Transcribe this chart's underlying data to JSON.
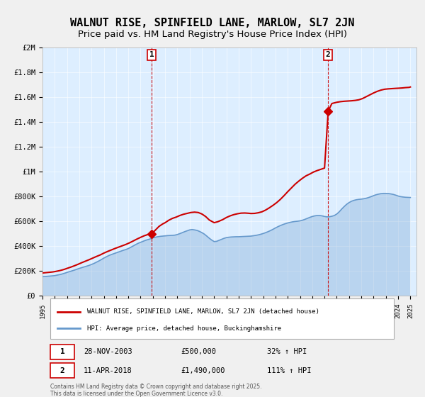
{
  "title": "WALNUT RISE, SPINFIELD LANE, MARLOW, SL7 2JN",
  "subtitle": "Price paid vs. HM Land Registry's House Price Index (HPI)",
  "title_fontsize": 11,
  "subtitle_fontsize": 9.5,
  "sale1_date_str": "28-NOV-2003",
  "sale1_price": 500000,
  "sale1_hpi_pct": "32%",
  "sale2_date_str": "11-APR-2018",
  "sale2_price": 1490000,
  "sale2_hpi_pct": "111%",
  "sale1_x": 2003.9,
  "sale1_y": 500000,
  "sale2_x": 2018.28,
  "sale2_y": 1490000,
  "ylim": [
    0,
    2000000
  ],
  "xlim": [
    1995,
    2025.5
  ],
  "yticks": [
    0,
    200000,
    400000,
    600000,
    800000,
    1000000,
    1200000,
    1400000,
    1600000,
    1800000,
    2000000
  ],
  "xticks": [
    1995,
    1996,
    1997,
    1998,
    1999,
    2000,
    2001,
    2002,
    2003,
    2004,
    2005,
    2006,
    2007,
    2008,
    2009,
    2010,
    2011,
    2012,
    2013,
    2014,
    2015,
    2016,
    2017,
    2018,
    2019,
    2020,
    2021,
    2022,
    2023,
    2024,
    2025
  ],
  "ylabel_labels": [
    "£0",
    "£200K",
    "£400K",
    "£600K",
    "£800K",
    "£1M",
    "£1.2M",
    "£1.4M",
    "£1.6M",
    "£1.8M",
    "£2M"
  ],
  "red_color": "#cc0000",
  "blue_color": "#6699cc",
  "bg_color": "#ddeeff",
  "legend_line1": "WALNUT RISE, SPINFIELD LANE, MARLOW, SL7 2JN (detached house)",
  "legend_line2": "HPI: Average price, detached house, Buckinghamshire",
  "footer": "Contains HM Land Registry data © Crown copyright and database right 2025.\nThis data is licensed under the Open Government Licence v3.0.",
  "hpi_x": [
    1995.0,
    1995.1,
    1995.2,
    1995.3,
    1995.4,
    1995.5,
    1995.6,
    1995.7,
    1995.8,
    1995.9,
    1996.0,
    1996.1,
    1996.2,
    1996.3,
    1996.4,
    1996.5,
    1996.6,
    1996.7,
    1996.8,
    1996.9,
    1997.0,
    1997.2,
    1997.4,
    1997.6,
    1997.8,
    1998.0,
    1998.2,
    1998.4,
    1998.6,
    1998.8,
    1999.0,
    1999.2,
    1999.4,
    1999.6,
    1999.8,
    2000.0,
    2000.2,
    2000.4,
    2000.6,
    2000.8,
    2001.0,
    2001.2,
    2001.4,
    2001.6,
    2001.8,
    2002.0,
    2002.2,
    2002.4,
    2002.6,
    2002.8,
    2003.0,
    2003.2,
    2003.4,
    2003.6,
    2003.8,
    2004.0,
    2004.2,
    2004.4,
    2004.6,
    2004.8,
    2005.0,
    2005.2,
    2005.4,
    2005.6,
    2005.8,
    2006.0,
    2006.2,
    2006.4,
    2006.6,
    2006.8,
    2007.0,
    2007.2,
    2007.4,
    2007.6,
    2007.8,
    2008.0,
    2008.2,
    2008.4,
    2008.6,
    2008.8,
    2009.0,
    2009.2,
    2009.4,
    2009.6,
    2009.8,
    2010.0,
    2010.2,
    2010.4,
    2010.6,
    2010.8,
    2011.0,
    2011.2,
    2011.4,
    2011.6,
    2011.8,
    2012.0,
    2012.2,
    2012.4,
    2012.6,
    2012.8,
    2013.0,
    2013.2,
    2013.4,
    2013.6,
    2013.8,
    2014.0,
    2014.2,
    2014.4,
    2014.6,
    2014.8,
    2015.0,
    2015.2,
    2015.4,
    2015.6,
    2015.8,
    2016.0,
    2016.2,
    2016.4,
    2016.6,
    2016.8,
    2017.0,
    2017.2,
    2017.4,
    2017.6,
    2017.8,
    2018.0,
    2018.2,
    2018.4,
    2018.6,
    2018.8,
    2019.0,
    2019.2,
    2019.4,
    2019.6,
    2019.8,
    2020.0,
    2020.2,
    2020.4,
    2020.6,
    2020.8,
    2021.0,
    2021.2,
    2021.4,
    2021.6,
    2021.8,
    2022.0,
    2022.2,
    2022.4,
    2022.6,
    2022.8,
    2023.0,
    2023.2,
    2023.4,
    2023.6,
    2023.8,
    2024.0,
    2024.2,
    2024.4,
    2024.6,
    2024.8,
    2025.0
  ],
  "hpi_y": [
    155000,
    156000,
    157000,
    158000,
    158500,
    159000,
    160000,
    161000,
    162000,
    163000,
    164000,
    166000,
    168000,
    170000,
    172000,
    174000,
    177000,
    180000,
    183000,
    186000,
    190000,
    196000,
    202000,
    208000,
    215000,
    222000,
    228000,
    234000,
    240000,
    246000,
    254000,
    262000,
    272000,
    282000,
    293000,
    305000,
    315000,
    325000,
    333000,
    340000,
    347000,
    354000,
    361000,
    368000,
    374000,
    382000,
    392000,
    403000,
    414000,
    424000,
    432000,
    440000,
    448000,
    454000,
    460000,
    468000,
    473000,
    477000,
    480000,
    482000,
    484000,
    486000,
    487000,
    488000,
    490000,
    495000,
    502000,
    510000,
    518000,
    525000,
    532000,
    535000,
    532000,
    528000,
    520000,
    510000,
    498000,
    482000,
    465000,
    450000,
    438000,
    440000,
    448000,
    456000,
    464000,
    470000,
    473000,
    475000,
    476000,
    477000,
    477000,
    478000,
    479000,
    480000,
    481000,
    482000,
    485000,
    488000,
    492000,
    497000,
    503000,
    510000,
    518000,
    527000,
    537000,
    548000,
    558000,
    567000,
    575000,
    582000,
    588000,
    593000,
    597000,
    600000,
    602000,
    605000,
    610000,
    617000,
    625000,
    633000,
    640000,
    645000,
    648000,
    648000,
    645000,
    640000,
    637000,
    638000,
    642000,
    648000,
    660000,
    678000,
    700000,
    720000,
    738000,
    752000,
    763000,
    770000,
    775000,
    778000,
    780000,
    783000,
    787000,
    793000,
    800000,
    808000,
    815000,
    820000,
    824000,
    826000,
    826000,
    825000,
    822000,
    818000,
    812000,
    805000,
    800000,
    797000,
    795000,
    794000,
    793000
  ],
  "red_x": [
    1995.0,
    1995.2,
    1995.4,
    1995.6,
    1995.8,
    1996.0,
    1996.2,
    1996.4,
    1996.6,
    1996.8,
    1997.0,
    1997.3,
    1997.6,
    1997.9,
    1998.2,
    1998.5,
    1998.8,
    1999.1,
    1999.4,
    1999.7,
    2000.0,
    2000.3,
    2000.6,
    2000.9,
    2001.2,
    2001.5,
    2001.8,
    2002.1,
    2002.4,
    2002.7,
    2003.0,
    2003.3,
    2003.6,
    2003.9,
    2004.2,
    2004.5,
    2004.8,
    2005.0,
    2005.3,
    2005.6,
    2005.9,
    2006.2,
    2006.5,
    2006.8,
    2007.1,
    2007.4,
    2007.7,
    2008.0,
    2008.3,
    2008.6,
    2009.0,
    2009.3,
    2009.7,
    2010.0,
    2010.3,
    2010.6,
    2010.9,
    2011.2,
    2011.5,
    2011.8,
    2012.0,
    2012.3,
    2012.6,
    2012.9,
    2013.2,
    2013.5,
    2013.8,
    2014.1,
    2014.4,
    2014.7,
    2015.0,
    2015.3,
    2015.6,
    2015.9,
    2016.2,
    2016.5,
    2016.8,
    2017.1,
    2017.4,
    2017.7,
    2018.0,
    2018.3,
    2018.6,
    2019.0,
    2019.3,
    2019.6,
    2019.9,
    2020.2,
    2020.5,
    2020.8,
    2021.1,
    2021.4,
    2021.7,
    2022.0,
    2022.3,
    2022.6,
    2022.9,
    2023.2,
    2023.5,
    2023.8,
    2024.0,
    2024.3,
    2024.6,
    2024.9,
    2025.0
  ],
  "red_y": [
    185000,
    187000,
    189000,
    191000,
    193000,
    196000,
    200000,
    204000,
    209000,
    215000,
    222000,
    232000,
    243000,
    255000,
    268000,
    280000,
    292000,
    305000,
    318000,
    330000,
    345000,
    358000,
    370000,
    382000,
    393000,
    404000,
    415000,
    428000,
    443000,
    458000,
    472000,
    485000,
    495000,
    500000,
    530000,
    560000,
    580000,
    590000,
    610000,
    625000,
    635000,
    648000,
    658000,
    665000,
    672000,
    675000,
    672000,
    660000,
    640000,
    612000,
    590000,
    598000,
    615000,
    632000,
    645000,
    655000,
    662000,
    667000,
    668000,
    666000,
    664000,
    665000,
    670000,
    678000,
    692000,
    710000,
    730000,
    752000,
    778000,
    808000,
    840000,
    870000,
    900000,
    925000,
    948000,
    968000,
    982000,
    998000,
    1010000,
    1020000,
    1030000,
    1490000,
    1550000,
    1560000,
    1565000,
    1568000,
    1570000,
    1572000,
    1575000,
    1580000,
    1590000,
    1605000,
    1620000,
    1635000,
    1648000,
    1658000,
    1665000,
    1668000,
    1670000,
    1672000,
    1673000,
    1675000,
    1678000,
    1680000,
    1683000
  ]
}
